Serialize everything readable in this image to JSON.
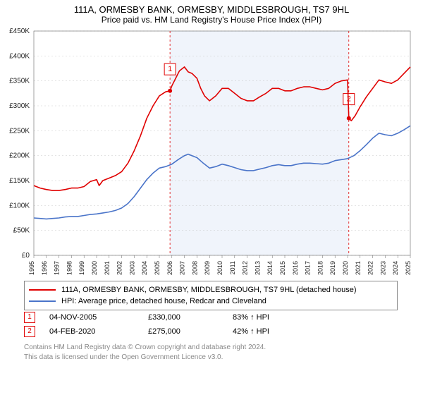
{
  "chart": {
    "type": "line",
    "title": "111A, ORMESBY BANK, ORMESBY, MIDDLESBROUGH, TS7 9HL",
    "subtitle": "Price paid vs. HM Land Registry's House Price Index (HPI)",
    "background_color": "#ffffff",
    "shade_color": "#f0f4fb",
    "grid_color": "#c8c8c8",
    "axis_color": "#666666",
    "text_color": "#222222",
    "title_fontsize": 13,
    "label_fontsize": 10,
    "x_years": [
      1995,
      1996,
      1997,
      1998,
      1999,
      2000,
      2001,
      2002,
      2003,
      2004,
      2005,
      2006,
      2007,
      2008,
      2009,
      2010,
      2011,
      2012,
      2013,
      2014,
      2015,
      2016,
      2017,
      2018,
      2019,
      2020,
      2021,
      2022,
      2023,
      2024,
      2025
    ],
    "shade_from_year": 2005.85,
    "shade_to_year": 2020.1,
    "ylim": [
      0,
      450000
    ],
    "ytick_step": 50000,
    "ytick_labels": [
      "£0",
      "£50K",
      "£100K",
      "£150K",
      "£200K",
      "£250K",
      "£300K",
      "£350K",
      "£400K",
      "£450K"
    ],
    "line_width": 1.6,
    "legend": [
      {
        "label": "111A, ORMESBY BANK, ORMESBY, MIDDLESBROUGH, TS7 9HL (detached house)",
        "color": "#e00000"
      },
      {
        "label": "HPI: Average price, detached house, Redcar and Cleveland",
        "color": "#4a74c9"
      }
    ],
    "markers": [
      {
        "n": "1",
        "year": 2005.85,
        "y": 362000
      },
      {
        "n": "2",
        "year": 2020.1,
        "y": 302000
      }
    ],
    "events": [
      {
        "n": "1",
        "date": "04-NOV-2005",
        "price": "£330,000",
        "pct": "83% ↑ HPI",
        "year": 2005.85,
        "value": 330000
      },
      {
        "n": "2",
        "date": "04-FEB-2020",
        "price": "£275,000",
        "pct": "42% ↑ HPI",
        "year": 2020.1,
        "value": 275000
      }
    ],
    "footer": [
      "Contains HM Land Registry data © Crown copyright and database right 2024.",
      "This data is licensed under the Open Government Licence v3.0."
    ],
    "series_red": [
      [
        1995.0,
        140000
      ],
      [
        1995.5,
        135000
      ],
      [
        1996.0,
        132000
      ],
      [
        1996.5,
        130000
      ],
      [
        1997.0,
        130000
      ],
      [
        1997.5,
        132000
      ],
      [
        1998.0,
        135000
      ],
      [
        1998.5,
        135000
      ],
      [
        1999.0,
        138000
      ],
      [
        1999.5,
        148000
      ],
      [
        2000.0,
        152000
      ],
      [
        2000.2,
        140000
      ],
      [
        2000.5,
        150000
      ],
      [
        2001.0,
        155000
      ],
      [
        2001.5,
        160000
      ],
      [
        2002.0,
        168000
      ],
      [
        2002.5,
        185000
      ],
      [
        2003.0,
        210000
      ],
      [
        2003.5,
        240000
      ],
      [
        2004.0,
        275000
      ],
      [
        2004.5,
        300000
      ],
      [
        2005.0,
        320000
      ],
      [
        2005.5,
        328000
      ],
      [
        2005.85,
        330000
      ],
      [
        2006.0,
        340000
      ],
      [
        2006.3,
        355000
      ],
      [
        2006.6,
        370000
      ],
      [
        2007.0,
        378000
      ],
      [
        2007.3,
        368000
      ],
      [
        2007.6,
        365000
      ],
      [
        2008.0,
        355000
      ],
      [
        2008.3,
        335000
      ],
      [
        2008.6,
        320000
      ],
      [
        2009.0,
        310000
      ],
      [
        2009.5,
        320000
      ],
      [
        2010.0,
        335000
      ],
      [
        2010.5,
        335000
      ],
      [
        2011.0,
        325000
      ],
      [
        2011.5,
        315000
      ],
      [
        2012.0,
        310000
      ],
      [
        2012.5,
        310000
      ],
      [
        2013.0,
        318000
      ],
      [
        2013.5,
        325000
      ],
      [
        2014.0,
        335000
      ],
      [
        2014.5,
        335000
      ],
      [
        2015.0,
        330000
      ],
      [
        2015.5,
        330000
      ],
      [
        2016.0,
        335000
      ],
      [
        2016.5,
        338000
      ],
      [
        2017.0,
        338000
      ],
      [
        2017.5,
        335000
      ],
      [
        2018.0,
        332000
      ],
      [
        2018.5,
        335000
      ],
      [
        2019.0,
        345000
      ],
      [
        2019.5,
        350000
      ],
      [
        2020.0,
        352000
      ],
      [
        2020.1,
        275000
      ],
      [
        2020.3,
        270000
      ],
      [
        2020.6,
        280000
      ],
      [
        2021.0,
        298000
      ],
      [
        2021.5,
        318000
      ],
      [
        2022.0,
        335000
      ],
      [
        2022.5,
        352000
      ],
      [
        2023.0,
        348000
      ],
      [
        2023.5,
        345000
      ],
      [
        2024.0,
        352000
      ],
      [
        2024.5,
        365000
      ],
      [
        2025.0,
        378000
      ]
    ],
    "series_blue": [
      [
        1995.0,
        75000
      ],
      [
        1995.5,
        74000
      ],
      [
        1996.0,
        73000
      ],
      [
        1996.5,
        74000
      ],
      [
        1997.0,
        75000
      ],
      [
        1997.5,
        77000
      ],
      [
        1998.0,
        78000
      ],
      [
        1998.5,
        78000
      ],
      [
        1999.0,
        80000
      ],
      [
        1999.5,
        82000
      ],
      [
        2000.0,
        83000
      ],
      [
        2000.5,
        85000
      ],
      [
        2001.0,
        87000
      ],
      [
        2001.5,
        90000
      ],
      [
        2002.0,
        95000
      ],
      [
        2002.5,
        104000
      ],
      [
        2003.0,
        118000
      ],
      [
        2003.5,
        135000
      ],
      [
        2004.0,
        152000
      ],
      [
        2004.5,
        165000
      ],
      [
        2005.0,
        175000
      ],
      [
        2005.5,
        178000
      ],
      [
        2006.0,
        183000
      ],
      [
        2006.5,
        192000
      ],
      [
        2007.0,
        200000
      ],
      [
        2007.3,
        203000
      ],
      [
        2007.6,
        200000
      ],
      [
        2008.0,
        196000
      ],
      [
        2008.5,
        185000
      ],
      [
        2009.0,
        175000
      ],
      [
        2009.5,
        178000
      ],
      [
        2010.0,
        183000
      ],
      [
        2010.5,
        180000
      ],
      [
        2011.0,
        176000
      ],
      [
        2011.5,
        172000
      ],
      [
        2012.0,
        170000
      ],
      [
        2012.5,
        170000
      ],
      [
        2013.0,
        173000
      ],
      [
        2013.5,
        176000
      ],
      [
        2014.0,
        180000
      ],
      [
        2014.5,
        182000
      ],
      [
        2015.0,
        180000
      ],
      [
        2015.5,
        180000
      ],
      [
        2016.0,
        183000
      ],
      [
        2016.5,
        185000
      ],
      [
        2017.0,
        185000
      ],
      [
        2017.5,
        184000
      ],
      [
        2018.0,
        183000
      ],
      [
        2018.5,
        185000
      ],
      [
        2019.0,
        190000
      ],
      [
        2019.5,
        192000
      ],
      [
        2020.0,
        194000
      ],
      [
        2020.5,
        200000
      ],
      [
        2021.0,
        210000
      ],
      [
        2021.5,
        222000
      ],
      [
        2022.0,
        235000
      ],
      [
        2022.5,
        245000
      ],
      [
        2023.0,
        242000
      ],
      [
        2023.5,
        240000
      ],
      [
        2024.0,
        245000
      ],
      [
        2024.5,
        252000
      ],
      [
        2025.0,
        260000
      ]
    ]
  }
}
